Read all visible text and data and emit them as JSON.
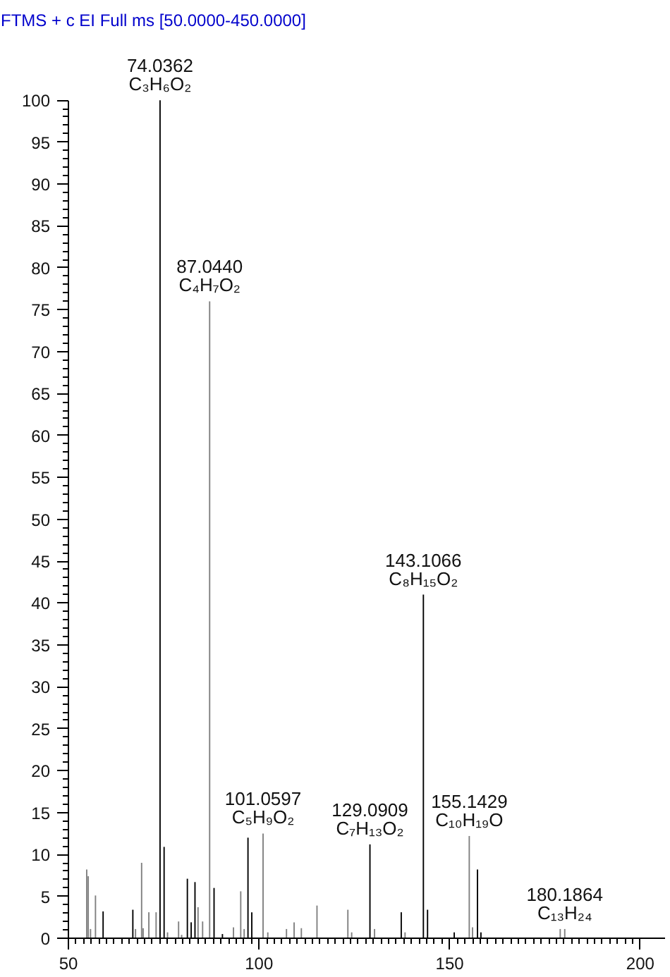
{
  "chart_data": {
    "type": "bar",
    "title": "FTMS + c EI Full ms [50.0000-450.0000]",
    "x": [
      54.8,
      55.2,
      55.8,
      57.1,
      59.1,
      66.9,
      67.6,
      69.2,
      69.6,
      71.1,
      73.0,
      74.0362,
      75.1,
      76.0,
      78.9,
      79.7,
      81.2,
      82.2,
      83.2,
      84.0,
      85.2,
      87.044,
      88.2,
      90.4,
      93.3,
      95.2,
      96.1,
      97.1,
      98.1,
      101.0597,
      102.3,
      107.2,
      109.2,
      111.1,
      115.2,
      123.3,
      124.3,
      129.0909,
      130.3,
      137.3,
      138.3,
      143.1066,
      144.2,
      151.2,
      155.1429,
      156.0,
      157.3,
      158.2,
      179.0,
      180.1864
    ],
    "values": [
      8.2,
      7.4,
      1.1,
      5.1,
      3.2,
      3.4,
      1.1,
      9.0,
      1.2,
      3.1,
      3.1,
      100,
      10.9,
      0.7,
      2.0,
      0.4,
      7.1,
      1.9,
      6.7,
      3.7,
      2.0,
      76,
      6.0,
      0.5,
      1.3,
      5.6,
      1.1,
      12.0,
      3.1,
      12.5,
      0.7,
      1.1,
      1.9,
      1.2,
      3.9,
      3.4,
      0.7,
      11.2,
      1.1,
      3.1,
      0.7,
      41.0,
      3.4,
      0.7,
      12.2,
      1.3,
      8.2,
      0.7,
      1.1,
      1.1
    ],
    "colors": [
      "#808080",
      "#808080",
      "#808080",
      "#808080",
      "#000000",
      "#000000",
      "#808080",
      "#808080",
      "#808080",
      "#808080",
      "#808080",
      "#000000",
      "#000000",
      "#808080",
      "#808080",
      "#808080",
      "#000000",
      "#000000",
      "#000000",
      "#808080",
      "#808080",
      "#808080",
      "#000000",
      "#000000",
      "#808080",
      "#808080",
      "#808080",
      "#000000",
      "#000000",
      "#808080",
      "#808080",
      "#808080",
      "#808080",
      "#808080",
      "#808080",
      "#808080",
      "#808080",
      "#000000",
      "#808080",
      "#000000",
      "#808080",
      "#000000",
      "#000000",
      "#000000",
      "#808080",
      "#808080",
      "#000000",
      "#000000",
      "#808080",
      "#808080"
    ],
    "annotations": [
      {
        "text": "74.0362\nC₃H₆O₂",
        "x": 74.0362,
        "y": 100
      },
      {
        "text": "87.0440\nC₄H₇O₂",
        "x": 87.044,
        "y": 76
      },
      {
        "text": "101.0597\nC₅H₉O₂",
        "x": 101.0597,
        "y": 12.5
      },
      {
        "text": "129.0909\nC₇H₁₃O₂",
        "x": 129.0909,
        "y": 11.2
      },
      {
        "text": "143.1066\nC₈H₁₅O₂",
        "x": 143.1066,
        "y": 41.0
      },
      {
        "text": "155.1429\nC₁₀H₁₉O",
        "x": 155.1429,
        "y": 12.2
      },
      {
        "text": "180.1864\nC₁₃H₂₄",
        "x": 180.1864,
        "y": 1.1
      }
    ],
    "xlim": [
      50,
      206.5
    ],
    "xticks": [
      50,
      100,
      150,
      200
    ],
    "ylim": [
      0,
      100
    ],
    "yticks": [
      0,
      5,
      10,
      15,
      20,
      25,
      30,
      35,
      40,
      45,
      50,
      55,
      60,
      65,
      70,
      75,
      80,
      85,
      90,
      95,
      100
    ],
    "grid": false
  }
}
